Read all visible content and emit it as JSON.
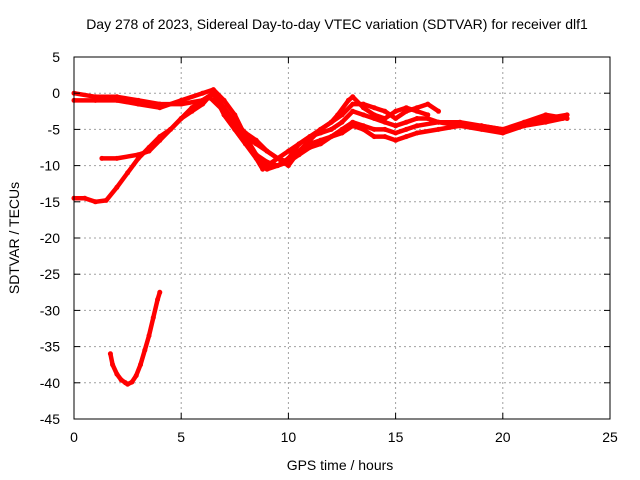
{
  "chart_data": {
    "type": "scatter",
    "title": "Day 278 of 2023, Sidereal Day-to-day VTEC variation (SDTVAR) for receiver dlf1",
    "xlabel": "GPS time / hours",
    "ylabel": "SDTVAR / TECUs",
    "xlim": [
      0,
      25
    ],
    "ylim": [
      -45,
      5
    ],
    "xticks": [
      0,
      5,
      10,
      15,
      20,
      25
    ],
    "yticks": [
      5,
      0,
      -5,
      -10,
      -15,
      -20,
      -25,
      -30,
      -35,
      -40,
      -45
    ],
    "grid": true,
    "legend": "none",
    "marker_color": "#ff0000",
    "series": [
      {
        "name": "trace-1",
        "x": [
          0.0,
          1.0,
          2.0,
          3.0,
          4.0,
          5.0,
          6.0,
          6.5,
          7.0,
          7.5,
          8.0,
          8.5,
          9.0,
          9.5,
          10.0,
          10.5,
          11.0,
          11.5,
          12.0,
          12.5,
          13.0,
          13.5,
          14.0,
          14.5,
          15.0,
          15.5,
          16.0,
          16.5,
          17.0
        ],
        "y": [
          0.0,
          -0.5,
          -0.5,
          -1.0,
          -1.5,
          -1.5,
          -1.0,
          0.0,
          -2.0,
          -4.0,
          -5.5,
          -6.5,
          -8.0,
          -9.0,
          -10.0,
          -8.0,
          -6.5,
          -5.0,
          -4.0,
          -3.0,
          -1.5,
          -1.5,
          -2.0,
          -2.5,
          -3.5,
          -2.5,
          -2.0,
          -1.5,
          -2.5
        ]
      },
      {
        "name": "trace-2",
        "x": [
          0.0,
          1.0,
          2.0,
          3.0,
          4.0,
          5.0,
          6.0,
          6.5,
          7.0,
          7.5,
          8.0,
          8.5,
          9.0,
          9.5,
          10.0,
          10.5,
          11.0,
          11.5,
          12.0,
          12.5,
          13.0,
          13.5,
          14.0,
          14.5,
          15.0,
          15.5,
          16.0,
          16.5,
          17.0,
          18.0,
          19.0,
          20.0,
          21.0,
          22.0,
          23.0
        ],
        "y": [
          -1.0,
          -1.0,
          -1.0,
          -1.5,
          -2.0,
          -1.0,
          0.0,
          0.5,
          -1.0,
          -3.0,
          -6.0,
          -8.5,
          -10.5,
          -10.0,
          -9.0,
          -7.0,
          -6.0,
          -5.5,
          -5.0,
          -4.0,
          -2.5,
          -3.0,
          -3.5,
          -4.0,
          -4.5,
          -4.0,
          -3.5,
          -3.5,
          -4.0,
          -4.0,
          -4.5,
          -5.0,
          -4.0,
          -3.0,
          -3.5
        ]
      },
      {
        "name": "trace-3",
        "x": [
          1.3,
          2.0,
          3.0,
          3.5,
          4.0,
          4.5,
          5.0,
          5.5,
          6.0,
          6.3,
          7.0,
          7.5,
          8.0,
          8.5,
          9.0,
          9.5,
          10.0,
          10.5,
          11.0,
          11.5,
          12.0,
          12.5,
          13.0,
          13.5,
          14.0,
          14.5,
          15.0,
          15.5,
          16.0,
          17.0,
          18.0,
          19.0,
          20.0,
          21.0,
          22.0,
          23.0
        ],
        "y": [
          -9.0,
          -9.0,
          -8.5,
          -8.0,
          -6.5,
          -5.0,
          -3.5,
          -2.5,
          -1.5,
          -0.5,
          -2.5,
          -4.5,
          -6.0,
          -7.0,
          -8.0,
          -9.0,
          -9.5,
          -8.5,
          -7.5,
          -7.0,
          -6.0,
          -5.5,
          -4.5,
          -5.0,
          -6.0,
          -6.0,
          -6.5,
          -6.0,
          -5.5,
          -5.0,
          -4.5,
          -4.5,
          -5.0,
          -4.5,
          -3.5,
          -3.0
        ]
      },
      {
        "name": "trace-4",
        "x": [
          0.0,
          0.5,
          1.0,
          1.5,
          2.0,
          2.5,
          3.0,
          3.5,
          4.0,
          4.5,
          5.0,
          5.5,
          6.0,
          6.5,
          7.0,
          7.5,
          8.0,
          8.5,
          9.0,
          9.5,
          10.0,
          10.5,
          11.0,
          11.5,
          12.0,
          12.5,
          13.0,
          13.5,
          14.0,
          14.5,
          15.0,
          15.5,
          16.0,
          17.0,
          18.0,
          19.0,
          20.0,
          21.0,
          22.0,
          22.8
        ],
        "y": [
          -14.5,
          -14.5,
          -15.0,
          -14.8,
          -13.0,
          -11.0,
          -9.0,
          -7.5,
          -6.0,
          -5.0,
          -3.5,
          -2.0,
          -1.0,
          0.0,
          -3.0,
          -5.0,
          -7.0,
          -8.5,
          -9.5,
          -10.0,
          -9.5,
          -8.0,
          -7.0,
          -6.5,
          -6.0,
          -5.0,
          -4.0,
          -4.5,
          -5.0,
          -5.0,
          -5.5,
          -5.0,
          -4.5,
          -4.0,
          -4.5,
          -5.0,
          -5.5,
          -4.5,
          -4.0,
          -3.5
        ]
      },
      {
        "name": "trace-5",
        "x": [
          7.0,
          7.5,
          8.0,
          8.5,
          8.8,
          9.0,
          9.5,
          10.0,
          10.5,
          11.0,
          11.5,
          12.0,
          12.3,
          12.8,
          13.0,
          13.5,
          14.0,
          14.5,
          15.0,
          15.5,
          16.0,
          16.5
        ],
        "y": [
          -3.0,
          -5.0,
          -7.0,
          -9.0,
          -10.5,
          -10.0,
          -9.0,
          -8.0,
          -7.0,
          -6.0,
          -5.0,
          -4.0,
          -3.0,
          -1.0,
          -0.5,
          -2.0,
          -3.0,
          -3.5,
          -2.5,
          -2.0,
          -2.5,
          -3.0
        ]
      },
      {
        "name": "trace-6",
        "x": [
          1.7,
          1.8,
          2.0,
          2.2,
          2.4,
          2.5,
          2.7,
          2.9,
          3.1,
          3.3,
          3.5,
          3.7,
          3.9,
          4.0
        ],
        "y": [
          -36.0,
          -37.5,
          -38.8,
          -39.6,
          -40.0,
          -40.2,
          -39.9,
          -39.0,
          -37.5,
          -35.5,
          -33.5,
          -31.0,
          -28.5,
          -27.5
        ]
      }
    ]
  }
}
